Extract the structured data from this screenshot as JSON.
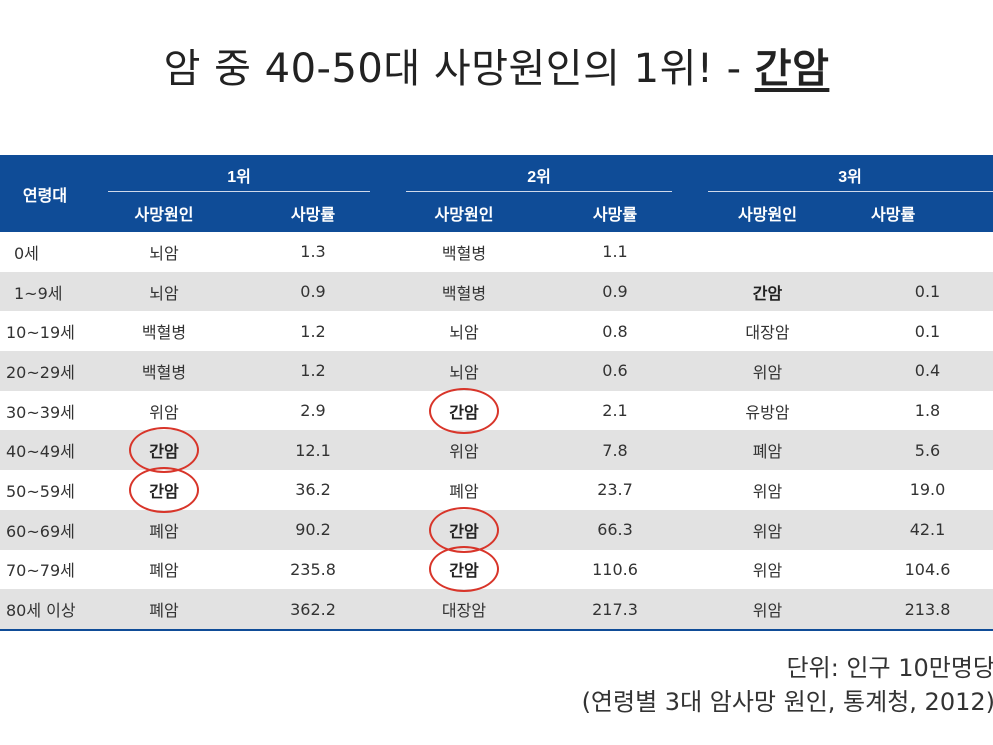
{
  "title": {
    "prefix": "암 중 40-50대 사망원인의 1위! - ",
    "highlight": "간암"
  },
  "table": {
    "age_header": "연령대",
    "groups": [
      "1위",
      "2위",
      "3위"
    ],
    "subheaders": [
      "사망원인",
      "사망률",
      "사망원인",
      "사망률",
      "사망원인",
      "사망률"
    ],
    "rows": [
      {
        "age": "0세",
        "c1": "뇌암",
        "r1": "1.3",
        "c2": "백혈병",
        "r2": "1.1",
        "c3": "",
        "r3": ""
      },
      {
        "age": "1~9세",
        "c1": "뇌암",
        "r1": "0.9",
        "c2": "백혈병",
        "r2": "0.9",
        "c3": "간암",
        "r3": "0.1"
      },
      {
        "age": "10~19세",
        "c1": "백혈병",
        "r1": "1.2",
        "c2": "뇌암",
        "r2": "0.8",
        "c3": "대장암",
        "r3": "0.1"
      },
      {
        "age": "20~29세",
        "c1": "백혈병",
        "r1": "1.2",
        "c2": "뇌암",
        "r2": "0.6",
        "c3": "위암",
        "r3": "0.4"
      },
      {
        "age": "30~39세",
        "c1": "위암",
        "r1": "2.9",
        "c2": "간암",
        "r2": "2.1",
        "c3": "유방암",
        "r3": "1.8"
      },
      {
        "age": "40~49세",
        "c1": "간암",
        "r1": "12.1",
        "c2": "위암",
        "r2": "7.8",
        "c3": "폐암",
        "r3": "5.6"
      },
      {
        "age": "50~59세",
        "c1": "간암",
        "r1": "36.2",
        "c2": "폐암",
        "r2": "23.7",
        "c3": "위암",
        "r3": "19.0"
      },
      {
        "age": "60~69세",
        "c1": "폐암",
        "r1": "90.2",
        "c2": "간암",
        "r2": "66.3",
        "c3": "위암",
        "r3": "42.1"
      },
      {
        "age": "70~79세",
        "c1": "폐암",
        "r1": "235.8",
        "c2": "간암",
        "r2": "110.6",
        "c3": "위암",
        "r3": "104.6"
      },
      {
        "age": "80세 이상",
        "c1": "폐암",
        "r1": "362.2",
        "c2": "대장암",
        "r2": "217.3",
        "c3": "위암",
        "r3": "213.8"
      }
    ]
  },
  "footer": {
    "unit": "단위: 인구 10만명당",
    "source": "(연령별 3대 암사망 원인, 통계청, 2012)"
  },
  "colors": {
    "header_bg": "#0f4c97",
    "circle": "#d8352a",
    "shade": "#e2e2e2"
  }
}
